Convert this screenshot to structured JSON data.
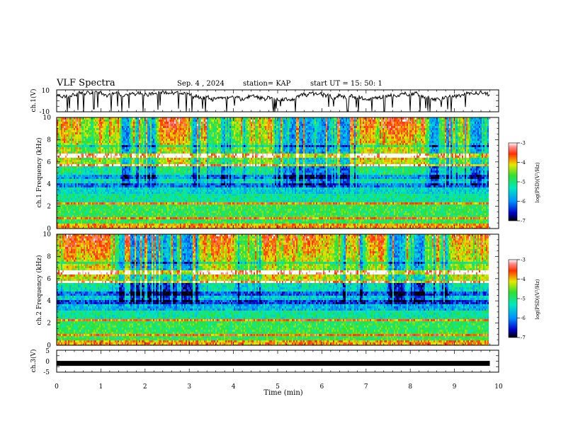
{
  "header": {
    "title": "VLF Spectra",
    "date": "Sep. 4 , 2024",
    "station": "station= KAP",
    "start": "start UT = 15: 50: 1"
  },
  "chart_data": [
    {
      "panel": "ch1-waveform",
      "type": "line",
      "ylabel": "ch.1(V)",
      "ylim": [
        -10,
        10
      ],
      "yticks": [
        10,
        -10
      ],
      "xlim": [
        0,
        10
      ],
      "series": [
        {
          "values_desc": "noisy waveform near 5 V with frequent spikes down to -10 V"
        }
      ]
    },
    {
      "panel": "ch1-spectrogram",
      "type": "heatmap",
      "ylabel": "ch.1 Frequency (kHz)",
      "ylim": [
        0,
        10
      ],
      "yticks": [
        0,
        2,
        4,
        6,
        8,
        10
      ],
      "xlim": [
        0,
        10
      ],
      "data_extent_min": 9.8,
      "colorbar": {
        "label": "log(PSD)(V²/Hz)",
        "range": [
          -7,
          -3
        ],
        "ticks": [
          -3,
          -4,
          -5,
          -6,
          -7
        ]
      }
    },
    {
      "panel": "ch2-spectrogram",
      "type": "heatmap",
      "ylabel": "ch.2 Frequency (kHz)",
      "ylim": [
        0,
        10
      ],
      "yticks": [
        0,
        2,
        4,
        6,
        8,
        10
      ],
      "xlim": [
        0,
        10
      ],
      "data_extent_min": 9.8,
      "colorbar": {
        "label": "log(PSD)(V²/Hz)",
        "range": [
          -7,
          -3
        ],
        "ticks": [
          -3,
          -4,
          -5,
          -6,
          -7
        ]
      }
    },
    {
      "panel": "ch3-waveform",
      "type": "line",
      "ylabel": "ch.3(V)",
      "ylim": [
        -5,
        5
      ],
      "yticks": [
        5,
        0,
        -5
      ],
      "xlim": [
        0,
        10
      ],
      "series": [
        {
          "level": -1,
          "values_desc": "flat thick trace near -1 V"
        }
      ]
    }
  ],
  "xaxis": {
    "label": "Time (min)",
    "ticks": [
      0,
      1,
      2,
      3,
      4,
      5,
      6,
      7,
      8,
      9,
      10
    ]
  }
}
